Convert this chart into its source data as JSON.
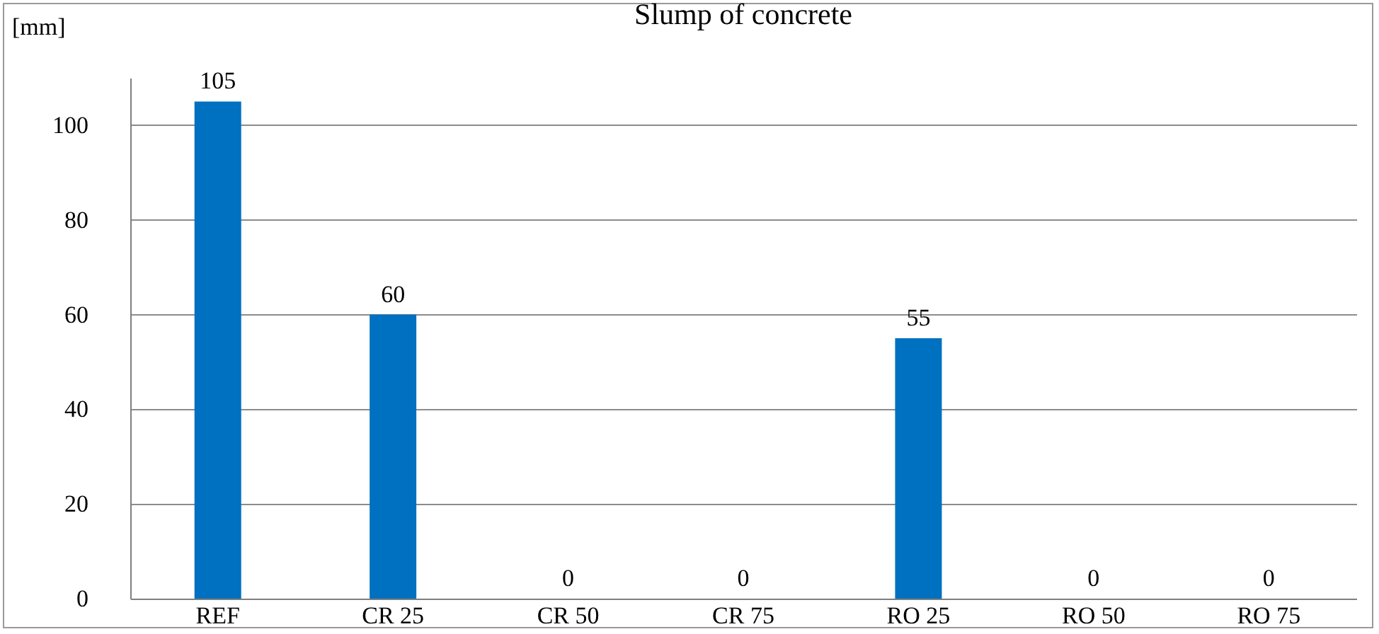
{
  "chart_data": {
    "type": "bar",
    "title": "Slump of concrete",
    "ylabel": "[mm]",
    "categories": [
      "REF",
      "CR 25",
      "CR 50",
      "CR 75",
      "RO 25",
      "RO 50",
      "RO 75"
    ],
    "values": [
      105,
      60,
      0,
      0,
      55,
      0,
      0
    ],
    "color": "#0070c0",
    "ylim": [
      0,
      110
    ],
    "yticks": [
      0,
      20,
      40,
      60,
      80,
      100
    ],
    "grid": "y",
    "data_labels": true
  }
}
